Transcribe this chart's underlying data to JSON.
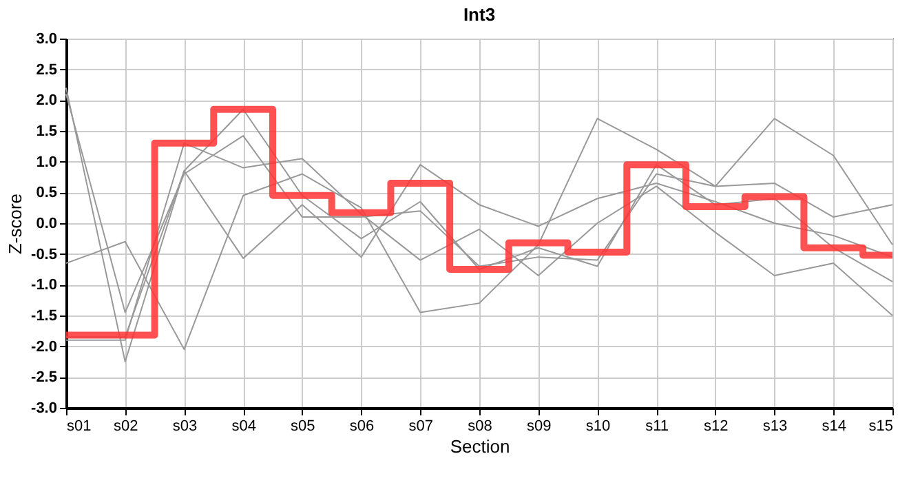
{
  "chart_data": {
    "type": "line",
    "title": "Int3",
    "xlabel": "Section",
    "ylabel": "Z-score",
    "categories": [
      "s01",
      "s02",
      "s03",
      "s04",
      "s05",
      "s06",
      "s07",
      "s08",
      "s09",
      "s10",
      "s11",
      "s12",
      "s13",
      "s14",
      "s15"
    ],
    "ylim": [
      -3,
      3
    ],
    "yticks": [
      {
        "value": -3,
        "label": "-3.0"
      },
      {
        "value": -2.5,
        "label": "-2.5"
      },
      {
        "value": -2,
        "label": "-2.0"
      },
      {
        "value": -1.5,
        "label": "-1.5"
      },
      {
        "value": -1,
        "label": "-1.0"
      },
      {
        "value": -0.5,
        "label": "-0.5"
      },
      {
        "value": 0,
        "label": "0.0"
      },
      {
        "value": 0.5,
        "label": "0.5"
      },
      {
        "value": 1,
        "label": "1.0"
      },
      {
        "value": 1.5,
        "label": "1.5"
      },
      {
        "value": 2,
        "label": "2.0"
      },
      {
        "value": 2.5,
        "label": "2.5"
      },
      {
        "value": 3,
        "label": "3.0"
      }
    ],
    "grid": true,
    "legend": false,
    "series": [
      {
        "type": "line",
        "color": "#999999",
        "values": [
          2.2,
          -2.25,
          0.85,
          1.85,
          0.45,
          -0.25,
          0.35,
          -0.75,
          -0.4,
          -0.7,
          0.95,
          0.3,
          0.4,
          -0.4,
          -0.95
        ]
      },
      {
        "type": "line",
        "color": "#999999",
        "values": [
          2.1,
          -1.45,
          0.8,
          1.42,
          0.1,
          0.1,
          0.2,
          -0.7,
          -0.55,
          -0.6,
          0.8,
          0.6,
          0.65,
          0.1,
          0.3
        ]
      },
      {
        "type": "line",
        "color": "#999999",
        "values": [
          -0.65,
          -0.3,
          -2.05,
          0.45,
          0.8,
          0.25,
          -1.45,
          -1.3,
          -0.35,
          1.7,
          1.2,
          0.6,
          1.7,
          1.1,
          -0.35
        ]
      },
      {
        "type": "line",
        "color": "#999999",
        "values": [
          -1.85,
          -1.85,
          0.85,
          -0.57,
          0.3,
          -0.55,
          0.95,
          0.3,
          -0.05,
          0.4,
          0.65,
          0.35,
          0.0,
          -0.2,
          -0.55
        ]
      },
      {
        "type": "line",
        "color": "#999999",
        "values": [
          -1.9,
          -1.9,
          1.3,
          0.9,
          1.05,
          0.15,
          -0.6,
          -0.1,
          -0.85,
          0.0,
          0.6,
          -0.15,
          -0.85,
          -0.65,
          -1.5
        ]
      },
      {
        "type": "step",
        "color": "#ff3333",
        "values": [
          -1.82,
          -1.82,
          1.3,
          1.85,
          0.45,
          0.17,
          0.65,
          -0.75,
          -0.32,
          -0.47,
          0.95,
          0.27,
          0.43,
          -0.4,
          -0.52
        ]
      }
    ]
  }
}
